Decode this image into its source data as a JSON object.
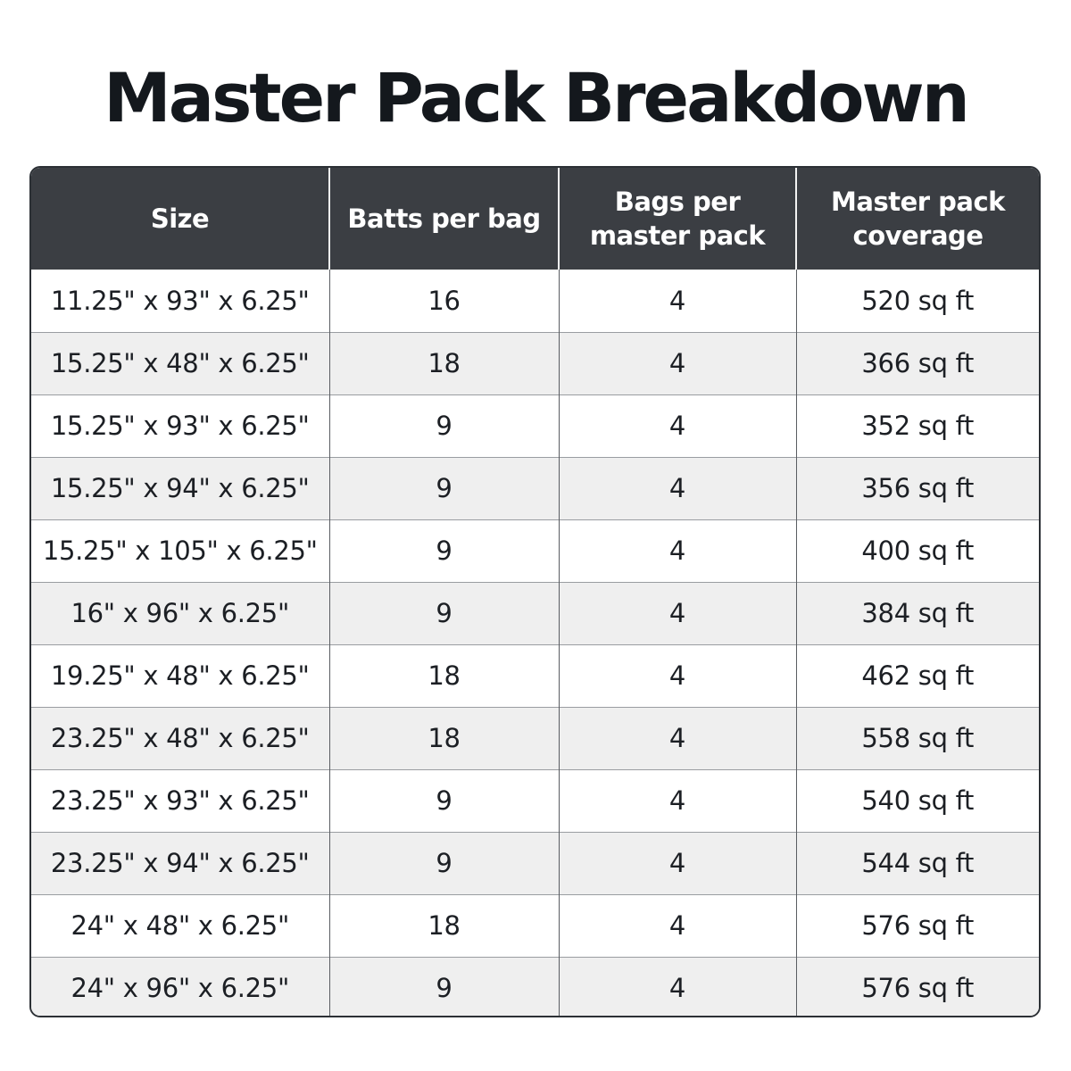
{
  "title": "Master Pack Breakdown",
  "table": {
    "headers": [
      "Size",
      "Batts per bag",
      "Bags per master pack",
      "Master pack coverage"
    ],
    "rows": [
      [
        "11.25\" x 93\" x 6.25\"",
        "16",
        "4",
        "520 sq ft"
      ],
      [
        "15.25\" x 48\" x 6.25\"",
        "18",
        "4",
        "366 sq ft"
      ],
      [
        "15.25\" x 93\" x 6.25\"",
        "9",
        "4",
        "352 sq ft"
      ],
      [
        "15.25\" x 94\" x 6.25\"",
        "9",
        "4",
        "356 sq ft"
      ],
      [
        "15.25\" x 105\" x 6.25\"",
        "9",
        "4",
        "400 sq ft"
      ],
      [
        "16\" x 96\" x 6.25\"",
        "9",
        "4",
        "384 sq ft"
      ],
      [
        "19.25\" x 48\" x 6.25\"",
        "18",
        "4",
        "462 sq ft"
      ],
      [
        "23.25\" x 48\" x 6.25\"",
        "18",
        "4",
        "558 sq ft"
      ],
      [
        "23.25\" x 93\" x 6.25\"",
        "9",
        "4",
        "540 sq ft"
      ],
      [
        "23.25\" x 94\" x 6.25\"",
        "9",
        "4",
        "544 sq ft"
      ],
      [
        "24\" x 48\" x 6.25\"",
        "18",
        "4",
        "576 sq ft"
      ],
      [
        "24\" x 96\" x 6.25\"",
        "9",
        "4",
        "576 sq ft"
      ]
    ]
  },
  "colors": {
    "header_background": "#3b3e43",
    "header_text": "#ffffff",
    "row_alt_background": "#efefef",
    "title_text": "#14181d"
  }
}
